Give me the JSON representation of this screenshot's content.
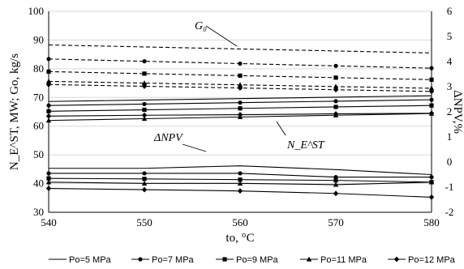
{
  "chart_data": {
    "type": "line",
    "x": [
      540,
      550,
      560,
      570,
      580
    ],
    "xlabel": "to, °C",
    "ylabel": "N_E^ST, MW; Go, kg/s",
    "y2label": "ΔNPV,%",
    "xlim": [
      540,
      580
    ],
    "ylim": [
      30,
      100
    ],
    "y2lim": [
      -2,
      6
    ],
    "xticks": [
      "540",
      "550",
      "560",
      "570",
      "580"
    ],
    "yticks": [
      "30",
      "40",
      "50",
      "60",
      "70",
      "80",
      "90",
      "100"
    ],
    "y2ticks": [
      "-2",
      "-1",
      "0",
      "1",
      "2",
      "3",
      "4",
      "5",
      "6"
    ],
    "grid": true,
    "legend_position": "bottom",
    "series_names": [
      "Po=5 MPa",
      "Po=7 MPa",
      "Po=9 MPa",
      "Po=11 MPa",
      "Po=12 MPa"
    ],
    "markers": [
      "none",
      "circle",
      "square",
      "triangle",
      "diamond"
    ],
    "G0": [
      [
        88.3,
        87.6,
        86.9,
        86.2,
        85.5
      ],
      [
        83.4,
        82.6,
        81.8,
        81.0,
        80.2
      ],
      [
        79.0,
        78.3,
        77.6,
        76.9,
        76.2
      ],
      [
        75.6,
        75.0,
        74.4,
        73.8,
        73.2
      ],
      [
        74.5,
        73.9,
        73.3,
        72.7,
        72.1
      ]
    ],
    "NEST": [
      [
        68.6,
        69.1,
        69.6,
        70.1,
        70.6
      ],
      [
        67.2,
        67.7,
        68.2,
        68.7,
        69.2
      ],
      [
        65.2,
        65.7,
        66.2,
        66.7,
        67.2
      ],
      [
        62.0,
        62.6,
        63.2,
        63.8,
        64.4
      ],
      [
        63.5,
        63.8,
        64.0,
        64.3,
        64.5
      ]
    ],
    "dNPV": [
      [
        -0.25,
        -0.25,
        -0.15,
        -0.3,
        -0.5
      ],
      [
        -0.45,
        -0.45,
        -0.45,
        -0.6,
        -0.6
      ],
      [
        -0.65,
        -0.67,
        -0.7,
        -0.73,
        -0.8
      ],
      [
        -0.8,
        -0.85,
        -0.85,
        -0.9,
        -0.8
      ],
      [
        -1.05,
        -1.1,
        -1.15,
        -1.25,
        -1.4
      ]
    ],
    "annotations": [
      {
        "text": "G₀",
        "target": "G0"
      },
      {
        "text": "ΔNPV",
        "target": "dNPV"
      },
      {
        "text": "N_E^ST",
        "target": "NEST"
      }
    ]
  }
}
